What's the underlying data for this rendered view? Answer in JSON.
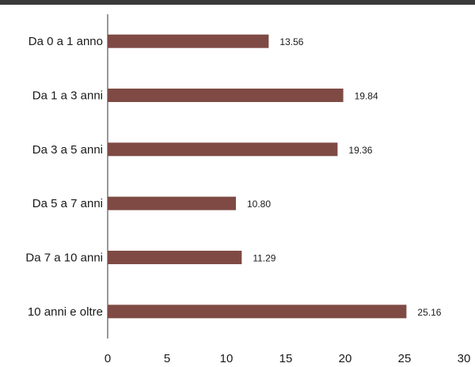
{
  "colors": {
    "bar": "#7f4a44",
    "axis": "#333333",
    "header": "#3a3a3a"
  },
  "chart_data": {
    "type": "bar",
    "orientation": "horizontal",
    "title": "",
    "xlabel": "",
    "ylabel": "",
    "categories": [
      "Da 0 a 1 anno",
      "Da 1 a 3 anni",
      "Da 3 a 5 anni",
      "Da 5 a 7 anni",
      "Da 7 a 10 anni",
      "10 anni e oltre"
    ],
    "values": [
      13.56,
      19.84,
      19.36,
      10.8,
      11.29,
      25.16
    ],
    "value_labels": [
      "13.56",
      "19.84",
      "19.36",
      "10.80",
      "11.29",
      "25.16"
    ],
    "xlim": [
      0,
      30
    ],
    "x_ticks": [
      0,
      5,
      10,
      15,
      20,
      25,
      30
    ],
    "grid": false,
    "legend": "none"
  }
}
